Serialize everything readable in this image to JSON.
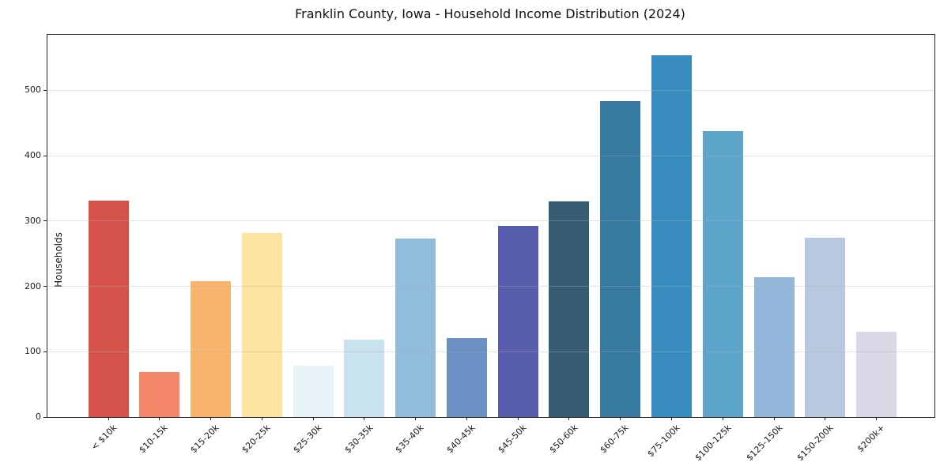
{
  "chart_data": {
    "type": "bar",
    "title": "Franklin County, Iowa - Household Income Distribution (2024)",
    "xlabel": "",
    "ylabel": "Households",
    "categories": [
      "< $10k",
      "$10-15k",
      "$15-20k",
      "$20-25k",
      "$25-30k",
      "$30-35k",
      "$35-40k",
      "$40-45k",
      "$45-50k",
      "$50-60k",
      "$60-75k",
      "$75-100k",
      "$100-125k",
      "$125-150k",
      "$150-200k",
      "$200k+"
    ],
    "values": [
      331,
      69,
      208,
      282,
      78,
      118,
      273,
      121,
      293,
      330,
      483,
      554,
      438,
      214,
      274,
      130
    ],
    "bar_colors": [
      "#d5524a",
      "#f4876a",
      "#f9b46e",
      "#fce3a0",
      "#e9f2f7",
      "#c9e2ef",
      "#92bcdc",
      "#6b90c4",
      "#585dab",
      "#375c71",
      "#3679a1",
      "#388bbe",
      "#5ea5cb",
      "#95b6db",
      "#b8c9df",
      "#d8d8e6"
    ],
    "yticks": [
      0,
      100,
      200,
      300,
      400,
      500
    ],
    "ylim": [
      0,
      585
    ],
    "grid": "horizontal",
    "legend": "none",
    "x_tick_rotation": 45
  }
}
